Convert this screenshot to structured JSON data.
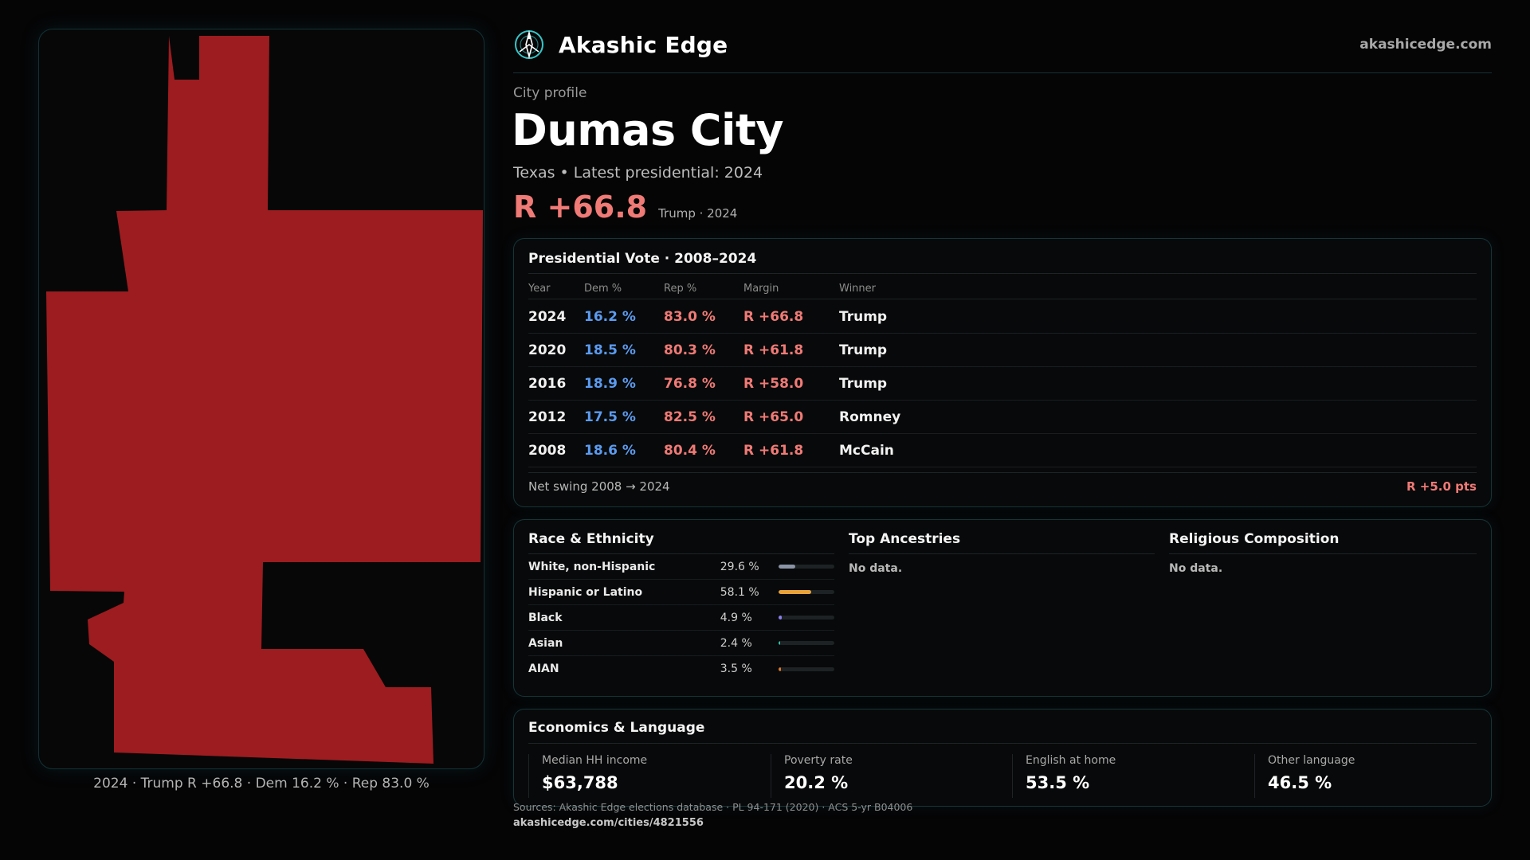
{
  "brand": {
    "name": "Akashic Edge",
    "url": "akashicedge.com",
    "logo_icon": "compass-logo-icon",
    "accent": "#36c6c8"
  },
  "profile": {
    "eyebrow": "City profile",
    "title": "Dumas City",
    "subtitle": "Texas • Latest presidential: 2024",
    "margin_big": "R +66.8",
    "margin_small": "Trump · 2024"
  },
  "map": {
    "fill_color": "#9c1c1f",
    "caption": "2024 · Trump R +66.8 · Dem 16.2 % · Rep 83.0 %"
  },
  "presidential": {
    "title": "Presidential Vote · 2008–2024",
    "columns": [
      "Year",
      "Dem %",
      "Rep %",
      "Margin",
      "Winner"
    ],
    "rows": [
      {
        "year": "2024",
        "dem": "16.2 %",
        "rep": "83.0 %",
        "margin": "R +66.8",
        "winner": "Trump"
      },
      {
        "year": "2020",
        "dem": "18.5 %",
        "rep": "80.3 %",
        "margin": "R +61.8",
        "winner": "Trump"
      },
      {
        "year": "2016",
        "dem": "18.9 %",
        "rep": "76.8 %",
        "margin": "R +58.0",
        "winner": "Trump"
      },
      {
        "year": "2012",
        "dem": "17.5 %",
        "rep": "82.5 %",
        "margin": "R +65.0",
        "winner": "Romney"
      },
      {
        "year": "2008",
        "dem": "18.6 %",
        "rep": "80.4 %",
        "margin": "R +61.8",
        "winner": "McCain"
      }
    ],
    "swing_label": "Net swing 2008 → 2024",
    "swing_value": "R +5.0 pts",
    "dem_color": "#5b9bf0",
    "rep_color": "#f07a76"
  },
  "race": {
    "title": "Race & Ethnicity",
    "rows": [
      {
        "name": "White, non-Hispanic",
        "pct_label": "29.6 %",
        "fraction": 0.296,
        "color": "#8a94a6"
      },
      {
        "name": "Hispanic or Latino",
        "pct_label": "58.1 %",
        "fraction": 0.581,
        "color": "#e8a23a"
      },
      {
        "name": "Black",
        "pct_label": "4.9 %",
        "fraction": 0.049,
        "color": "#8b7ff0"
      },
      {
        "name": "Asian",
        "pct_label": "2.4 %",
        "fraction": 0.024,
        "color": "#2fc2a8"
      },
      {
        "name": "AIAN",
        "pct_label": "3.5 %",
        "fraction": 0.035,
        "color": "#e0782e"
      }
    ]
  },
  "ancestries": {
    "title": "Top Ancestries",
    "empty": "No data."
  },
  "religion": {
    "title": "Religious Composition",
    "empty": "No data."
  },
  "economics": {
    "title": "Economics & Language",
    "items": [
      {
        "label": "Median HH income",
        "value": "$63,788"
      },
      {
        "label": "Poverty rate",
        "value": "20.2 %"
      },
      {
        "label": "English at home",
        "value": "53.5 %"
      },
      {
        "label": "Other language",
        "value": "46.5 %"
      }
    ]
  },
  "footer": {
    "sources": "Sources: Akashic Edge elections database · PL 94-171 (2020) · ACS 5-yr B04006",
    "link": "akashicedge.com/cities/4821556"
  }
}
